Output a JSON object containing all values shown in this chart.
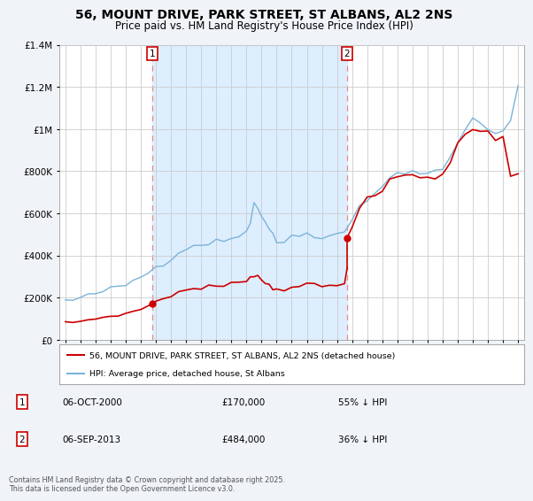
{
  "title": "56, MOUNT DRIVE, PARK STREET, ST ALBANS, AL2 2NS",
  "subtitle": "Price paid vs. HM Land Registry's House Price Index (HPI)",
  "title_fontsize": 10,
  "subtitle_fontsize": 8.5,
  "background_color": "#f0f4f8",
  "plot_bg_color": "#ffffff",
  "sale1_date": 2000.75,
  "sale1_price": 170000,
  "sale1_label": "1",
  "sale2_date": 2013.67,
  "sale2_price": 484000,
  "sale2_label": "2",
  "legend_label_red": "56, MOUNT DRIVE, PARK STREET, ST ALBANS, AL2 2NS (detached house)",
  "legend_label_blue": "HPI: Average price, detached house, St Albans",
  "footer": "Contains HM Land Registry data © Crown copyright and database right 2025.\nThis data is licensed under the Open Government Licence v3.0.",
  "red_color": "#cc0000",
  "blue_color": "#7ab4d8",
  "shade_color": "#ddeeff",
  "vline_color": "#ee8888",
  "ylim": [
    0,
    1400000
  ],
  "xlim_start": 1994.6,
  "xlim_end": 2025.4,
  "hpi_years": [
    1995,
    1995.5,
    1996,
    1996.5,
    1997,
    1997.5,
    1998,
    1998.5,
    1999,
    1999.5,
    2000,
    2000.5,
    2001,
    2001.5,
    2002,
    2002.5,
    2003,
    2003.5,
    2004,
    2004.5,
    2005,
    2005.5,
    2006,
    2006.5,
    2007,
    2007.25,
    2007.5,
    2007.75,
    2008,
    2008.25,
    2008.5,
    2008.75,
    2009,
    2009.5,
    2010,
    2010.5,
    2011,
    2011.5,
    2012,
    2012.5,
    2013,
    2013.5,
    2014,
    2014.5,
    2015,
    2015.5,
    2016,
    2016.5,
    2017,
    2017.5,
    2018,
    2018.5,
    2019,
    2019.5,
    2020,
    2020.5,
    2021,
    2021.5,
    2022,
    2022.5,
    2023,
    2023.5,
    2024,
    2024.5,
    2025
  ],
  "hpi_values": [
    185000,
    188000,
    195000,
    205000,
    220000,
    230000,
    238000,
    248000,
    260000,
    278000,
    300000,
    320000,
    345000,
    365000,
    390000,
    415000,
    435000,
    445000,
    455000,
    462000,
    465000,
    468000,
    480000,
    500000,
    520000,
    550000,
    660000,
    620000,
    590000,
    560000,
    530000,
    490000,
    460000,
    470000,
    490000,
    500000,
    505000,
    500000,
    490000,
    492000,
    498000,
    510000,
    570000,
    640000,
    670000,
    700000,
    730000,
    760000,
    790000,
    800000,
    800000,
    790000,
    795000,
    800000,
    800000,
    860000,
    940000,
    1000000,
    1050000,
    1020000,
    1000000,
    980000,
    1000000,
    1050000,
    1200000
  ],
  "red_years_pre": [
    1995,
    1995.5,
    1996,
    1996.5,
    1997,
    1997.5,
    1998,
    1998.5,
    1999,
    1999.5,
    2000,
    2000.75
  ],
  "red_values_pre": [
    80000,
    83000,
    87000,
    93000,
    100000,
    106000,
    111000,
    117000,
    122000,
    133000,
    145000,
    170000
  ],
  "red_years_mid": [
    2000.75,
    2001,
    2001.5,
    2002,
    2002.5,
    2003,
    2003.5,
    2004,
    2004.5,
    2005,
    2005.5,
    2006,
    2006.5,
    2007,
    2007.25,
    2007.5,
    2007.75,
    2008,
    2008.25,
    2008.5,
    2008.75,
    2009,
    2009.5,
    2010,
    2010.5,
    2011,
    2011.5,
    2012,
    2012.5,
    2013,
    2013.5,
    2013.67
  ],
  "red_values_mid": [
    170000,
    184000,
    196000,
    211000,
    225000,
    235000,
    241000,
    247000,
    251000,
    253000,
    255000,
    262000,
    273000,
    283000,
    300000,
    310000,
    300000,
    285000,
    270000,
    258000,
    245000,
    238000,
    242000,
    252000,
    258000,
    261000,
    258000,
    253000,
    254000,
    257000,
    263000,
    340000
  ],
  "red_years_post": [
    2013.67,
    2014,
    2014.5,
    2015,
    2015.5,
    2016,
    2016.5,
    2017,
    2017.5,
    2018,
    2018.5,
    2019,
    2019.5,
    2020,
    2020.5,
    2021,
    2021.5,
    2022,
    2022.5,
    2023,
    2023.5,
    2024,
    2024.5,
    2025
  ],
  "red_values_post": [
    484000,
    555000,
    620000,
    650000,
    680000,
    710000,
    740000,
    770000,
    780000,
    780000,
    770000,
    775000,
    780000,
    780000,
    840000,
    920000,
    980000,
    1020000,
    990000,
    970000,
    950000,
    975000,
    790000,
    800000
  ]
}
